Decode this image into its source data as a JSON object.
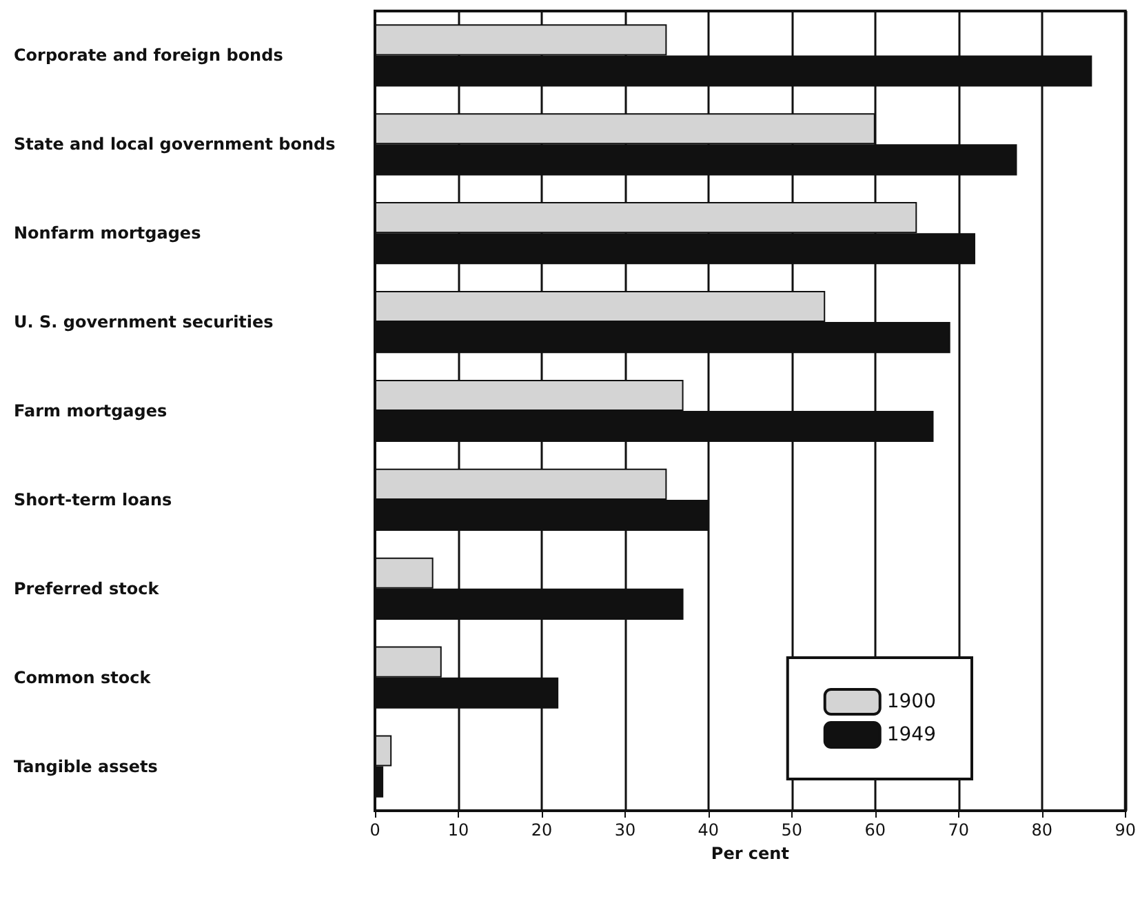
{
  "chart_data": {
    "type": "bar",
    "orientation": "horizontal",
    "xlabel": "Per cent",
    "categories": [
      "Corporate and foreign bonds",
      "State and local government bonds",
      "Nonfarm mortgages",
      "U. S. government securities",
      "Farm mortgages",
      "Short-term loans",
      "Preferred stock",
      "Common stock",
      "Tangible assets"
    ],
    "series": [
      {
        "name": "1900",
        "color": "#d4d4d4",
        "values": [
          35,
          60,
          65,
          54,
          37,
          35,
          7,
          8,
          2
        ]
      },
      {
        "name": "1949",
        "color": "#111111",
        "values": [
          86,
          77,
          72,
          69,
          67,
          40,
          37,
          22,
          1
        ]
      }
    ],
    "xlim": [
      0,
      90
    ],
    "xticks": [
      0,
      10,
      20,
      30,
      40,
      50,
      60,
      70,
      80,
      90
    ],
    "grid": "x",
    "legend": "bottom right"
  }
}
